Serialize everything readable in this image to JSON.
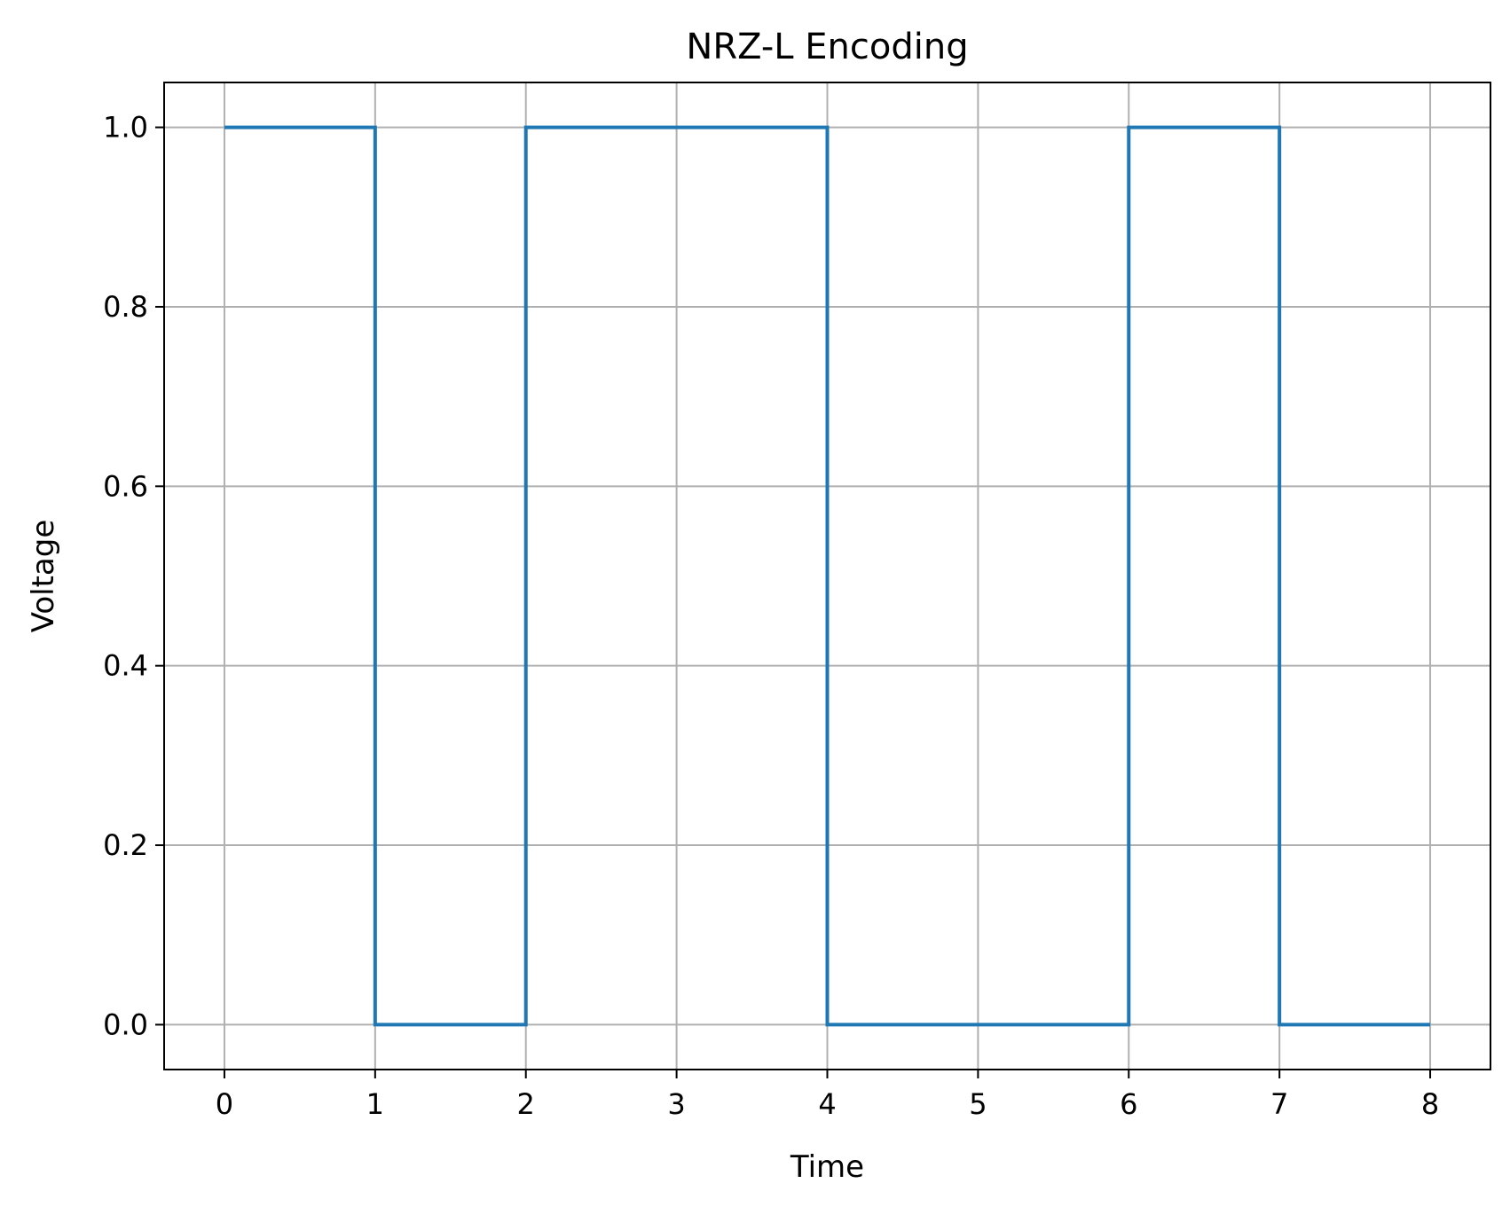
{
  "chart_data": {
    "type": "line",
    "title": "NRZ-L Encoding",
    "xlabel": "Time",
    "ylabel": "Voltage",
    "step": "post",
    "xlim": [
      -0.4,
      8.4
    ],
    "ylim": [
      -0.05,
      1.05
    ],
    "xticks": [
      0,
      1,
      2,
      3,
      4,
      5,
      6,
      7,
      8
    ],
    "xtick_labels": [
      "0",
      "1",
      "2",
      "3",
      "4",
      "5",
      "6",
      "7",
      "8"
    ],
    "yticks": [
      0.0,
      0.2,
      0.4,
      0.6,
      0.8,
      1.0
    ],
    "ytick_labels": [
      "0.0",
      "0.2",
      "0.4",
      "0.6",
      "0.8",
      "1.0"
    ],
    "grid": true,
    "legend": "none",
    "series": [
      {
        "color": "#1f77b4",
        "x": [
          0,
          1,
          2,
          3,
          4,
          5,
          6,
          7,
          8
        ],
        "y": [
          1,
          0,
          1,
          1,
          0,
          0,
          1,
          0,
          0
        ]
      }
    ]
  }
}
